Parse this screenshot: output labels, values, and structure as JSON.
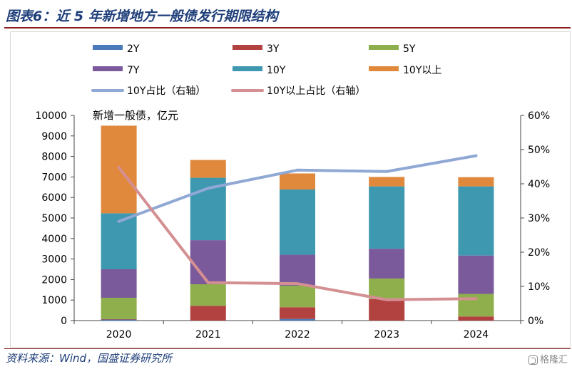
{
  "title": "图表6：近 5 年新增地方一般债发行期限结构",
  "source": "资料来源：Wind，国盛证券研究所",
  "watermark": "格隆汇",
  "chart_data": {
    "type": "bar",
    "stacked": true,
    "categories": [
      "2020",
      "2021",
      "2022",
      "2023",
      "2024"
    ],
    "ylabel": "新增一般债，亿元",
    "ylim": [
      0,
      10000
    ],
    "yticks": [
      0,
      1000,
      2000,
      3000,
      4000,
      5000,
      6000,
      7000,
      8000,
      9000,
      10000
    ],
    "y2lim": [
      0,
      60
    ],
    "y2ticks": [
      "0%",
      "10%",
      "20%",
      "30%",
      "40%",
      "50%",
      "60%"
    ],
    "y2tick_values": [
      0,
      10,
      20,
      30,
      40,
      50,
      60
    ],
    "legend_position": "top",
    "series": [
      {
        "name": "2Y",
        "color": "#4a7ab8",
        "values": [
          50,
          0,
          80,
          0,
          0
        ]
      },
      {
        "name": "3Y",
        "color": "#b2423f",
        "values": [
          20,
          720,
          570,
          1050,
          200
        ]
      },
      {
        "name": "5Y",
        "color": "#8fae4c",
        "values": [
          1040,
          1050,
          1050,
          1000,
          1100
        ]
      },
      {
        "name": "7Y",
        "color": "#7a5a9a",
        "values": [
          1390,
          2150,
          1510,
          1450,
          1870
        ]
      },
      {
        "name": "10Y",
        "color": "#3e98b0",
        "values": [
          2730,
          3040,
          3180,
          3040,
          3370
        ]
      },
      {
        "name": "10Y以上",
        "color": "#e0893c",
        "values": [
          4270,
          870,
          780,
          460,
          450
        ]
      }
    ],
    "lines": [
      {
        "name": "10Y占比（右轴）",
        "axis": "right",
        "color": "#8fa8d4",
        "values": [
          29.0,
          38.7,
          44.0,
          43.6,
          48.2
        ]
      },
      {
        "name": "10Y以上占比（右轴）",
        "axis": "right",
        "color": "#d48f92",
        "values": [
          44.8,
          11.1,
          10.8,
          6.1,
          6.4
        ]
      }
    ]
  }
}
